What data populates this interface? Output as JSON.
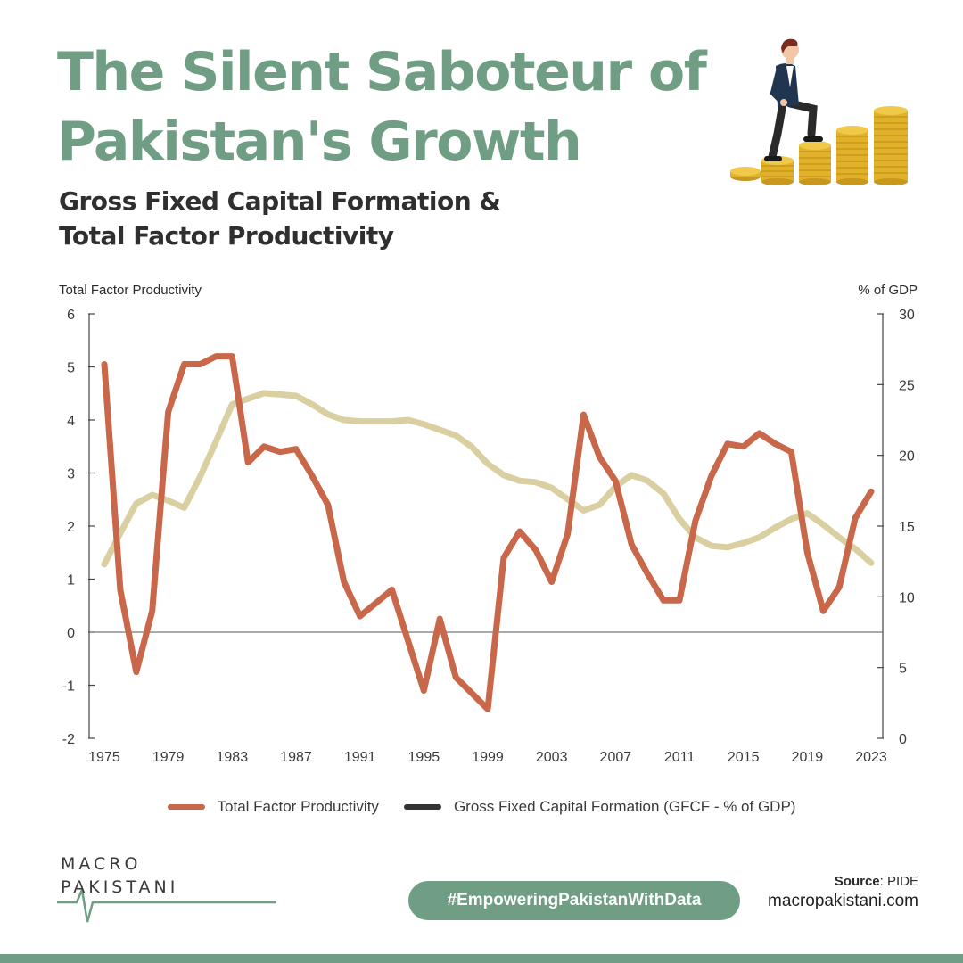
{
  "header": {
    "title": "The Silent Saboteur of Pakistan's Growth",
    "subtitle_line1": "Gross Fixed Capital Formation &",
    "subtitle_line2": "Total Factor Productivity"
  },
  "chart_data": {
    "type": "line",
    "left_axis_label": "Total Factor Productivity",
    "right_axis_label": "% of GDP",
    "left_ylim": [
      -2,
      6
    ],
    "left_ticks": [
      6,
      5,
      4,
      3,
      2,
      1,
      0,
      -1,
      -2
    ],
    "right_ylim": [
      0,
      30
    ],
    "right_ticks": [
      30,
      25,
      20,
      15,
      10,
      5,
      0
    ],
    "x_tick_labels": [
      1975,
      1979,
      1983,
      1987,
      1991,
      1995,
      1999,
      2003,
      2007,
      2011,
      2015,
      2019,
      2023
    ],
    "grid": false,
    "zero_line": true,
    "series": [
      {
        "name": "Total Factor Productivity",
        "axis": "left",
        "color": "#c9674a",
        "x": [
          1975,
          1976,
          1977,
          1978,
          1979,
          1980,
          1981,
          1982,
          1983,
          1984,
          1985,
          1986,
          1987,
          1988,
          1989,
          1990,
          1991,
          1992,
          1993,
          1994,
          1995,
          1996,
          1997,
          1998,
          1999,
          2000,
          2001,
          2002,
          2003,
          2004,
          2005,
          2006,
          2007,
          2008,
          2009,
          2010,
          2011,
          2012,
          2013,
          2014,
          2015,
          2016,
          2017,
          2018,
          2019,
          2020,
          2021,
          2022,
          2023
        ],
        "values": [
          5.05,
          0.8,
          -0.75,
          0.4,
          4.15,
          5.05,
          5.05,
          5.2,
          5.2,
          3.2,
          3.5,
          3.4,
          3.45,
          2.95,
          2.4,
          0.95,
          0.3,
          0.55,
          0.8,
          -0.15,
          -1.1,
          0.25,
          -0.85,
          -1.15,
          -1.45,
          1.4,
          1.9,
          1.55,
          0.95,
          1.85,
          4.1,
          3.3,
          2.85,
          1.65,
          1.1,
          0.6,
          0.6,
          2.1,
          2.95,
          3.55,
          3.5,
          3.75,
          3.55,
          3.4,
          1.5,
          0.4,
          0.85,
          2.15,
          2.65
        ]
      },
      {
        "name": "Gross Fixed Capital Formation (GFCF - % of GDP)",
        "axis": "right",
        "color": "#d8cc9c",
        "legend_color": "#333333",
        "x": [
          1975,
          1976,
          1977,
          1978,
          1979,
          1980,
          1981,
          1982,
          1983,
          1984,
          1985,
          1986,
          1987,
          1988,
          1989,
          1990,
          1991,
          1992,
          1993,
          1994,
          1995,
          1996,
          1997,
          1998,
          1999,
          2000,
          2001,
          2002,
          2003,
          2004,
          2005,
          2006,
          2007,
          2008,
          2009,
          2010,
          2011,
          2012,
          2013,
          2014,
          2015,
          2016,
          2017,
          2018,
          2019,
          2020,
          2021,
          2022,
          2023
        ],
        "values": [
          12.3,
          14.5,
          16.6,
          17.2,
          16.8,
          16.3,
          18.5,
          21.0,
          23.6,
          24.0,
          24.4,
          24.3,
          24.2,
          23.6,
          22.9,
          22.5,
          22.4,
          22.4,
          22.4,
          22.5,
          22.2,
          21.8,
          21.4,
          20.6,
          19.4,
          18.6,
          18.2,
          18.1,
          17.7,
          16.9,
          16.1,
          16.5,
          17.8,
          18.6,
          18.2,
          17.3,
          15.5,
          14.2,
          13.6,
          13.5,
          13.8,
          14.2,
          14.9,
          15.5,
          15.9,
          15.1,
          14.2,
          13.4,
          12.4
        ]
      }
    ]
  },
  "legend": {
    "items": [
      {
        "label": "Total Factor Productivity",
        "color": "#c9674a"
      },
      {
        "label": "Gross Fixed Capital Formation (GFCF - % of GDP)",
        "color": "#333333"
      }
    ]
  },
  "footer": {
    "logo_line1": "MACRO",
    "logo_line2": "PAKISTANI",
    "hashtag": "#EmpoweringPakistanWithData",
    "source_label": "Source",
    "source_value": ": PIDE",
    "website": "macropakistani.com"
  },
  "colors": {
    "brand_green": "#6f9e84",
    "tfp_line": "#c9674a",
    "gfcf_line": "#d8cc9c",
    "coin_gold": "#e2b12a"
  },
  "icons": {
    "illustration": "businessman-climbing-coin-stacks-icon"
  }
}
